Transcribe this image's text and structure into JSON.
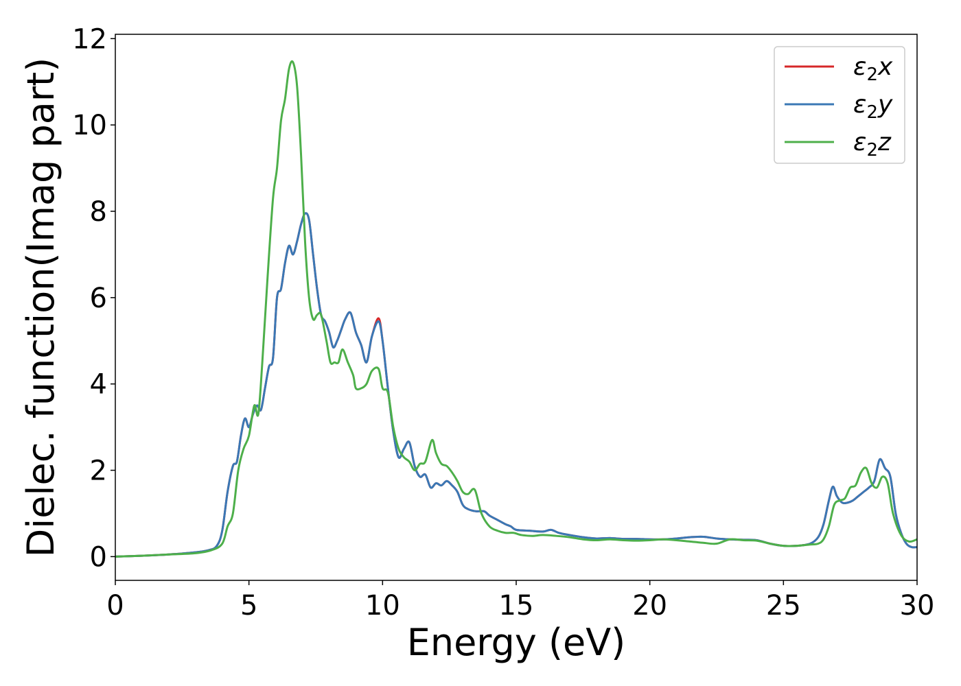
{
  "chart_data": {
    "type": "line",
    "xlabel": "Energy (eV)",
    "ylabel": "Dielec. function(Imag part)",
    "xlim": [
      0,
      30
    ],
    "ylim": [
      -0.55,
      12.1
    ],
    "xticks": [
      0,
      5,
      10,
      15,
      20,
      25,
      30
    ],
    "yticks": [
      0,
      2,
      4,
      6,
      8,
      10,
      12
    ],
    "xtick_labels": [
      "0",
      "5",
      "10",
      "15",
      "20",
      "25",
      "30"
    ],
    "ytick_labels": [
      "0",
      "2",
      "4",
      "6",
      "8",
      "10",
      "12"
    ],
    "grid": false,
    "legend_position": "top-right",
    "series": [
      {
        "name": "ε2x",
        "legend": {
          "base": "ε",
          "sub": "2",
          "suffix": "x"
        },
        "color": "#d62728",
        "x": [
          0,
          1,
          2,
          3,
          3.5,
          3.8,
          4.0,
          4.2,
          4.4,
          4.55,
          4.7,
          4.85,
          5.0,
          5.15,
          5.3,
          5.45,
          5.6,
          5.75,
          5.9,
          6.05,
          6.2,
          6.35,
          6.5,
          6.65,
          6.8,
          6.95,
          7.1,
          7.25,
          7.4,
          7.55,
          7.7,
          7.85,
          8.0,
          8.15,
          8.3,
          8.45,
          8.6,
          8.8,
          9.0,
          9.2,
          9.4,
          9.6,
          9.85,
          10.0,
          10.2,
          10.4,
          10.6,
          10.8,
          11.0,
          11.2,
          11.4,
          11.6,
          11.8,
          12.0,
          12.2,
          12.4,
          12.6,
          12.8,
          13.0,
          13.2,
          13.5,
          13.8,
          14.0,
          14.3,
          14.6,
          14.8,
          15.0,
          15.5,
          16.0,
          16.3,
          16.6,
          17.0,
          17.5,
          18.0,
          18.5,
          19.0,
          19.5,
          20.0,
          20.5,
          21.0,
          21.5,
          22.0,
          22.5,
          23.0,
          23.5,
          24.0,
          24.5,
          25.0,
          25.5,
          26.0,
          26.3,
          26.5,
          26.7,
          26.85,
          27.0,
          27.2,
          27.4,
          27.6,
          27.8,
          28.0,
          28.2,
          28.4,
          28.6,
          28.8,
          29.0,
          29.2,
          29.4,
          29.6,
          29.8,
          30.0
        ],
        "values": [
          0,
          0.02,
          0.05,
          0.1,
          0.15,
          0.25,
          0.6,
          1.5,
          2.1,
          2.2,
          2.8,
          3.2,
          3.0,
          3.3,
          3.5,
          3.4,
          3.9,
          4.4,
          4.6,
          6.0,
          6.2,
          6.8,
          7.2,
          7.0,
          7.3,
          7.7,
          7.95,
          7.8,
          7.0,
          6.2,
          5.6,
          5.45,
          5.2,
          4.85,
          5.0,
          5.25,
          5.5,
          5.65,
          5.2,
          4.9,
          4.5,
          5.1,
          5.52,
          5.0,
          3.9,
          2.9,
          2.3,
          2.5,
          2.65,
          2.1,
          1.85,
          1.9,
          1.6,
          1.7,
          1.65,
          1.75,
          1.65,
          1.5,
          1.2,
          1.1,
          1.05,
          1.05,
          0.95,
          0.85,
          0.75,
          0.7,
          0.62,
          0.6,
          0.58,
          0.62,
          0.55,
          0.5,
          0.45,
          0.42,
          0.43,
          0.41,
          0.41,
          0.4,
          0.4,
          0.42,
          0.45,
          0.46,
          0.42,
          0.4,
          0.39,
          0.38,
          0.3,
          0.25,
          0.25,
          0.3,
          0.45,
          0.75,
          1.3,
          1.62,
          1.4,
          1.25,
          1.25,
          1.3,
          1.4,
          1.5,
          1.6,
          1.75,
          2.25,
          2.05,
          1.85,
          1.0,
          0.55,
          0.3,
          0.22,
          0.22
        ],
        "width": 3
      },
      {
        "name": "ε2y",
        "legend": {
          "base": "ε",
          "sub": "2",
          "suffix": "y"
        },
        "color": "#3a78b5",
        "x": [
          0,
          1,
          2,
          3,
          3.5,
          3.8,
          4.0,
          4.2,
          4.4,
          4.55,
          4.7,
          4.85,
          5.0,
          5.15,
          5.3,
          5.45,
          5.6,
          5.75,
          5.9,
          6.05,
          6.2,
          6.35,
          6.5,
          6.65,
          6.8,
          6.95,
          7.1,
          7.25,
          7.4,
          7.55,
          7.7,
          7.85,
          8.0,
          8.15,
          8.3,
          8.45,
          8.6,
          8.8,
          9.0,
          9.2,
          9.4,
          9.6,
          9.85,
          10.0,
          10.2,
          10.4,
          10.6,
          10.8,
          11.0,
          11.2,
          11.4,
          11.6,
          11.8,
          12.0,
          12.2,
          12.4,
          12.6,
          12.8,
          13.0,
          13.2,
          13.5,
          13.8,
          14.0,
          14.3,
          14.6,
          14.8,
          15.0,
          15.5,
          16.0,
          16.3,
          16.6,
          17.0,
          17.5,
          18.0,
          18.5,
          19.0,
          19.5,
          20.0,
          20.5,
          21.0,
          21.5,
          22.0,
          22.5,
          23.0,
          23.5,
          24.0,
          24.5,
          25.0,
          25.5,
          26.0,
          26.3,
          26.5,
          26.7,
          26.85,
          27.0,
          27.2,
          27.4,
          27.6,
          27.8,
          28.0,
          28.2,
          28.4,
          28.6,
          28.8,
          29.0,
          29.2,
          29.4,
          29.6,
          29.8,
          30.0
        ],
        "values": [
          0,
          0.02,
          0.05,
          0.1,
          0.15,
          0.25,
          0.6,
          1.5,
          2.1,
          2.2,
          2.8,
          3.2,
          3.0,
          3.3,
          3.5,
          3.4,
          3.9,
          4.4,
          4.6,
          6.0,
          6.2,
          6.8,
          7.2,
          7.0,
          7.3,
          7.7,
          7.95,
          7.8,
          7.0,
          6.2,
          5.6,
          5.45,
          5.2,
          4.85,
          5.0,
          5.25,
          5.5,
          5.65,
          5.2,
          4.9,
          4.5,
          5.1,
          5.45,
          5.0,
          3.9,
          2.9,
          2.3,
          2.5,
          2.65,
          2.1,
          1.85,
          1.9,
          1.6,
          1.7,
          1.65,
          1.75,
          1.65,
          1.5,
          1.2,
          1.1,
          1.05,
          1.05,
          0.95,
          0.85,
          0.75,
          0.7,
          0.62,
          0.6,
          0.58,
          0.62,
          0.55,
          0.5,
          0.45,
          0.42,
          0.43,
          0.41,
          0.41,
          0.4,
          0.4,
          0.42,
          0.45,
          0.46,
          0.42,
          0.4,
          0.39,
          0.38,
          0.3,
          0.25,
          0.25,
          0.3,
          0.45,
          0.75,
          1.3,
          1.62,
          1.4,
          1.25,
          1.25,
          1.3,
          1.4,
          1.5,
          1.6,
          1.75,
          2.25,
          2.05,
          1.85,
          1.0,
          0.55,
          0.3,
          0.22,
          0.22
        ],
        "width": 3
      },
      {
        "name": "ε2z",
        "legend": {
          "base": "ε",
          "sub": "2",
          "suffix": "z"
        },
        "color": "#4daf4a",
        "x": [
          0,
          1,
          2,
          3,
          3.6,
          4.0,
          4.2,
          4.4,
          4.6,
          4.8,
          5.0,
          5.2,
          5.35,
          5.5,
          5.7,
          5.9,
          6.05,
          6.2,
          6.35,
          6.5,
          6.65,
          6.8,
          6.95,
          7.1,
          7.25,
          7.4,
          7.55,
          7.7,
          7.9,
          8.05,
          8.2,
          8.35,
          8.5,
          8.7,
          8.9,
          9.0,
          9.2,
          9.4,
          9.6,
          9.85,
          10.0,
          10.2,
          10.4,
          10.6,
          10.8,
          11.0,
          11.2,
          11.4,
          11.6,
          11.85,
          12.0,
          12.2,
          12.4,
          12.6,
          12.8,
          13.0,
          13.2,
          13.45,
          13.7,
          14.0,
          14.3,
          14.6,
          14.9,
          15.2,
          15.6,
          16.0,
          16.5,
          17.0,
          17.5,
          18.0,
          18.5,
          19.0,
          19.5,
          20.0,
          20.5,
          21.0,
          21.5,
          22.0,
          22.5,
          23.0,
          23.5,
          24.0,
          24.5,
          25.0,
          25.5,
          26.0,
          26.3,
          26.5,
          26.7,
          26.9,
          27.1,
          27.3,
          27.5,
          27.7,
          27.9,
          28.1,
          28.3,
          28.5,
          28.7,
          28.9,
          29.1,
          29.4,
          29.7,
          30.0
        ],
        "values": [
          0,
          0.02,
          0.05,
          0.08,
          0.15,
          0.3,
          0.7,
          1.0,
          2.0,
          2.5,
          2.8,
          3.5,
          3.3,
          4.5,
          6.5,
          8.3,
          9.0,
          10.1,
          10.6,
          11.3,
          11.45,
          10.9,
          9.3,
          7.3,
          6.0,
          5.5,
          5.6,
          5.6,
          5.0,
          4.5,
          4.5,
          4.5,
          4.8,
          4.5,
          4.2,
          3.9,
          3.9,
          4.0,
          4.3,
          4.35,
          3.9,
          3.8,
          3.0,
          2.5,
          2.3,
          2.2,
          2.0,
          2.15,
          2.2,
          2.7,
          2.4,
          2.15,
          2.1,
          1.95,
          1.75,
          1.5,
          1.45,
          1.55,
          1.0,
          0.7,
          0.6,
          0.55,
          0.55,
          0.5,
          0.48,
          0.5,
          0.48,
          0.45,
          0.4,
          0.38,
          0.4,
          0.38,
          0.37,
          0.38,
          0.4,
          0.38,
          0.35,
          0.32,
          0.3,
          0.4,
          0.38,
          0.37,
          0.3,
          0.25,
          0.25,
          0.28,
          0.3,
          0.4,
          0.7,
          1.2,
          1.3,
          1.35,
          1.6,
          1.65,
          1.95,
          2.05,
          1.7,
          1.6,
          1.85,
          1.7,
          1.0,
          0.5,
          0.35,
          0.4
        ],
        "width": 3
      }
    ]
  }
}
